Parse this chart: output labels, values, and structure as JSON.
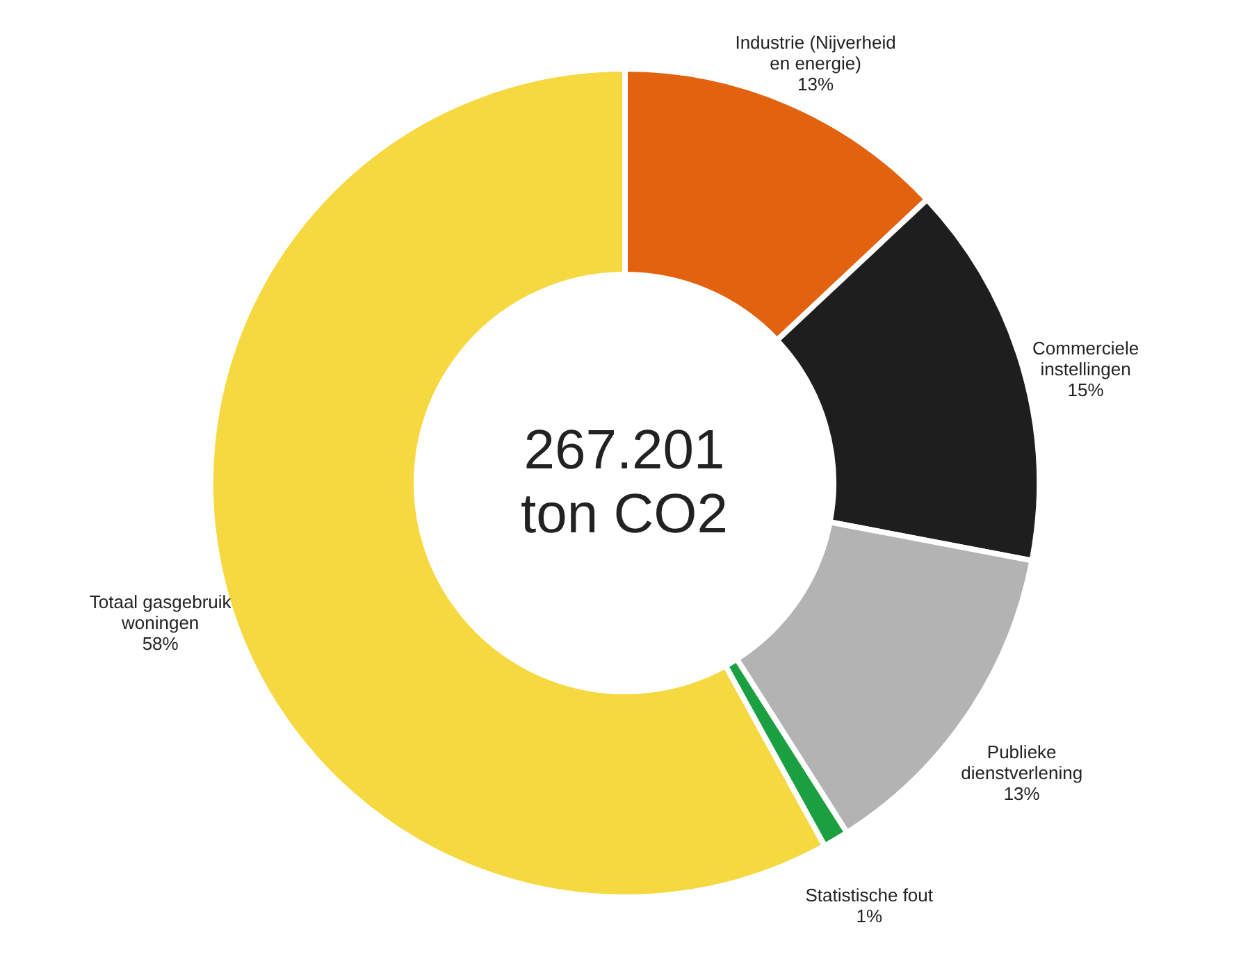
{
  "chart_data": {
    "type": "donut",
    "categories": [
      "Industrie (Nijverheid en energie)",
      "Commerciele instellingen",
      "Publieke dienstverlening",
      "Statistische fout",
      "Totaal gasgebruik woningen"
    ],
    "values": [
      13,
      15,
      13,
      1,
      58
    ],
    "value_labels": [
      "13%",
      "15%",
      "13%",
      "1%",
      "58%"
    ],
    "colors": [
      "#e2620f",
      "#1e1e1e",
      "#b3b3b3",
      "#1aa040",
      "#f6d840"
    ],
    "annotations": [
      "267.201\nton CO2"
    ],
    "legend": false
  }
}
